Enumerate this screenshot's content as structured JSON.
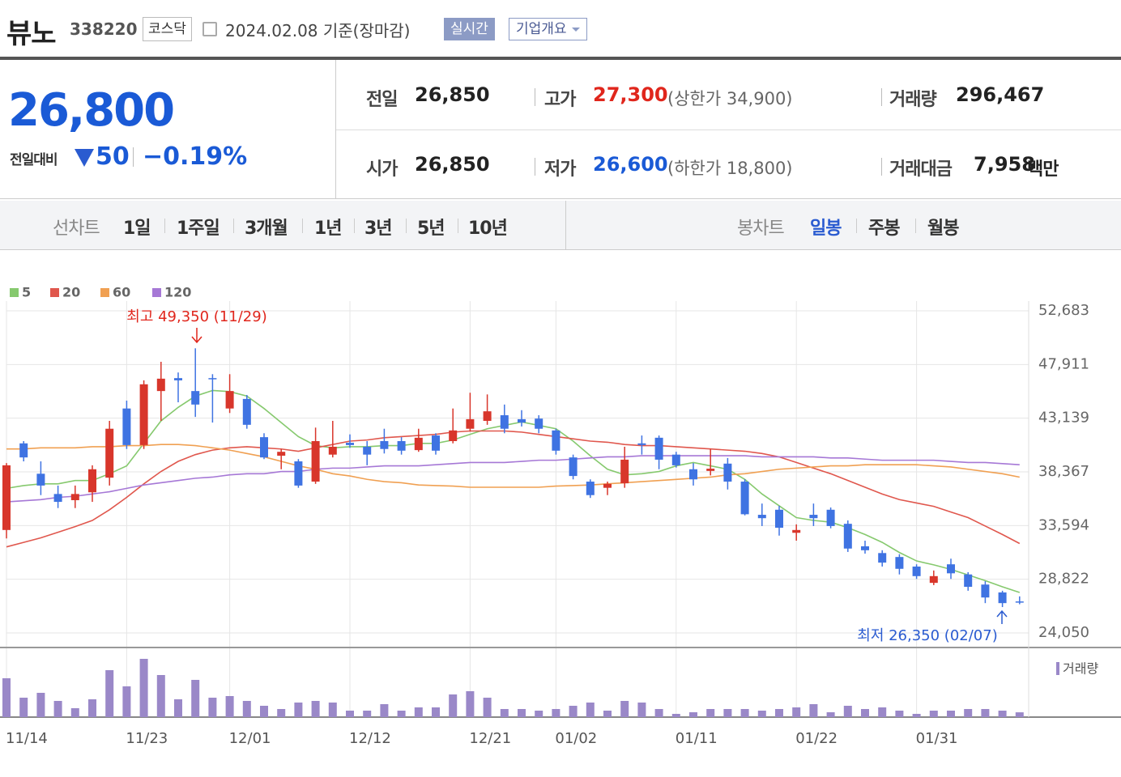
{
  "header": {
    "name": "뷰노",
    "code": "338220",
    "market": "코스닥",
    "date": "2024.02.08 기준(장마감)",
    "realtime": "실시간",
    "company_info": "기업개요"
  },
  "quote": {
    "price": "26,800",
    "change_label": "전일대비",
    "change": "50",
    "change_rate": "−0.19%"
  },
  "stats": [
    {
      "label": "전일",
      "value": "26,850"
    },
    {
      "label": "고가",
      "value": "27,300",
      "note": "(상한가 34,900)"
    },
    {
      "label": "거래량",
      "value": "296,467"
    },
    {
      "label": "시가",
      "value": "26,850"
    },
    {
      "label": "저가",
      "value": "26,600",
      "note": "(하한가 18,800)"
    },
    {
      "label": "거래대금",
      "value": "7,958",
      "unit": "백만"
    }
  ],
  "tabs": {
    "line_chart": {
      "label": "선차트",
      "periods": [
        "1일",
        "1주일",
        "3개월",
        "1년",
        "3년",
        "5년",
        "10년"
      ]
    },
    "candle_chart": {
      "label": "봉차트",
      "periods": [
        "일봉",
        "주봉",
        "월봉"
      ]
    }
  },
  "chart_data": {
    "type": "candlestick",
    "categories": [
      "11/14",
      null,
      null,
      null,
      null,
      null,
      null,
      "11/23",
      null,
      null,
      null,
      null,
      null,
      "12/01",
      null,
      null,
      null,
      null,
      null,
      null,
      "12/12",
      null,
      null,
      null,
      null,
      null,
      null,
      "12/21",
      null,
      null,
      null,
      null,
      "01/02",
      null,
      null,
      null,
      null,
      null,
      null,
      "01/11",
      null,
      null,
      null,
      null,
      null,
      null,
      "01/22",
      null,
      null,
      null,
      null,
      null,
      null,
      "01/31",
      null,
      null,
      null,
      null,
      null,
      null
    ],
    "open": [
      33200,
      40900,
      38200,
      36400,
      35850,
      36550,
      37850,
      44000,
      40750,
      45550,
      46700,
      45550,
      46700,
      44000,
      44850,
      41450,
      39800,
      39300,
      37500,
      39900,
      40950,
      40600,
      41100,
      41100,
      40300,
      41600,
      41100,
      42200,
      42900,
      43400,
      43050,
      43100,
      42050,
      39650,
      37500,
      36950,
      37350,
      40900,
      41400,
      39900,
      38600,
      38450,
      39100,
      37500,
      34550,
      35000,
      32950,
      34550,
      35000,
      33750,
      31750,
      31150,
      30800,
      29950,
      28500,
      30150,
      29250,
      28350,
      27650,
      26850
    ],
    "high": [
      39150,
      41100,
      39300,
      37150,
      37150,
      38950,
      42900,
      44700,
      46500,
      48150,
      47200,
      49350,
      47050,
      47050,
      45200,
      41800,
      40400,
      39500,
      42300,
      42900,
      41700,
      41100,
      42200,
      41450,
      42200,
      41800,
      44000,
      45400,
      45250,
      44350,
      43850,
      43400,
      42200,
      39900,
      37700,
      37500,
      40600,
      41600,
      41600,
      40150,
      39150,
      40400,
      39600,
      37700,
      35550,
      35350,
      33700,
      35550,
      35200,
      34050,
      32250,
      31400,
      31050,
      30150,
      29600,
      30650,
      29450,
      28650,
      27800,
      27300
    ],
    "low": [
      32450,
      39300,
      36300,
      35150,
      35150,
      35700,
      37150,
      40400,
      40400,
      42900,
      44550,
      43250,
      42750,
      43600,
      42200,
      39500,
      38600,
      36950,
      37300,
      39650,
      40500,
      38950,
      40000,
      39900,
      40150,
      39900,
      40900,
      41950,
      42550,
      41800,
      42400,
      41800,
      39900,
      37700,
      36050,
      36300,
      36950,
      39900,
      38600,
      38750,
      37150,
      38050,
      36800,
      34500,
      33550,
      32700,
      32250,
      33550,
      33350,
      31250,
      31100,
      29950,
      29250,
      28850,
      28300,
      28850,
      27800,
      26700,
      26350,
      26600
    ],
    "close": [
      38950,
      39650,
      37150,
      35700,
      36400,
      38600,
      42200,
      40750,
      46150,
      46650,
      46500,
      44350,
      46650,
      45550,
      42550,
      39650,
      40150,
      37150,
      41100,
      40600,
      40750,
      39900,
      40400,
      40250,
      41400,
      40250,
      42050,
      43050,
      43750,
      42200,
      42750,
      42200,
      40250,
      38000,
      36300,
      37300,
      39450,
      40750,
      39450,
      38950,
      37700,
      38650,
      37500,
      34600,
      34250,
      33400,
      33200,
      34250,
      33550,
      31550,
      31400,
      30300,
      29750,
      29100,
      29100,
      29350,
      28150,
      27200,
      26700,
      26800
    ],
    "up_color": "#d8362b",
    "down_color": "#3f73e2",
    "moving_averages": [
      {
        "name": "5",
        "color": "#86c96e",
        "values": [
          36900,
          37150,
          37300,
          37300,
          37600,
          37600,
          38200,
          38900,
          40900,
          42900,
          44100,
          45100,
          45600,
          45500,
          45100,
          44000,
          42750,
          41500,
          40700,
          40500,
          40600,
          40600,
          40700,
          40700,
          40900,
          40900,
          41200,
          41700,
          42200,
          42500,
          42800,
          42500,
          42200,
          41100,
          39800,
          38600,
          38100,
          38200,
          38400,
          38900,
          39200,
          38900,
          38600,
          37700,
          36400,
          35350,
          34300,
          34050,
          33900,
          33400,
          32800,
          32100,
          31200,
          30450,
          30100,
          29700,
          29200,
          28700,
          28150,
          27650
        ]
      },
      {
        "name": "20",
        "color": "#e0574d",
        "values": [
          31700,
          32100,
          32500,
          33000,
          33500,
          34050,
          35000,
          36100,
          37300,
          38400,
          39300,
          39900,
          40300,
          40500,
          40600,
          40500,
          40400,
          40200,
          40500,
          40800,
          41100,
          41200,
          41400,
          41500,
          41600,
          41700,
          41900,
          42000,
          42000,
          42000,
          41900,
          41700,
          41500,
          41300,
          41100,
          41000,
          40800,
          40700,
          40700,
          40600,
          40500,
          40400,
          40300,
          40200,
          40000,
          39700,
          39200,
          38700,
          38200,
          37600,
          37000,
          36400,
          35900,
          35600,
          35300,
          34800,
          34300,
          33550,
          32800,
          32000
        ]
      },
      {
        "name": "60",
        "color": "#f0a052",
        "values": [
          40400,
          40400,
          40500,
          40500,
          40500,
          40600,
          40600,
          40700,
          40700,
          40800,
          40800,
          40700,
          40500,
          40300,
          40000,
          39700,
          39300,
          38900,
          38600,
          38200,
          38000,
          37700,
          37500,
          37400,
          37200,
          37150,
          37100,
          37000,
          37000,
          37000,
          37000,
          37000,
          37100,
          37150,
          37200,
          37300,
          37400,
          37500,
          37600,
          37700,
          37800,
          37900,
          38100,
          38200,
          38400,
          38600,
          38700,
          38800,
          38900,
          38900,
          39000,
          39000,
          39000,
          39000,
          38900,
          38800,
          38600,
          38400,
          38200,
          37900
        ]
      },
      {
        "name": "120",
        "color": "#a678d6",
        "values": [
          35700,
          35800,
          35900,
          36100,
          36200,
          36400,
          36600,
          36900,
          37200,
          37400,
          37600,
          37800,
          37900,
          38100,
          38200,
          38200,
          38400,
          38400,
          38600,
          38700,
          38700,
          38800,
          38900,
          38900,
          38900,
          39000,
          39100,
          39200,
          39200,
          39200,
          39300,
          39400,
          39400,
          39500,
          39600,
          39700,
          39700,
          39800,
          39800,
          39800,
          39800,
          39800,
          39800,
          39800,
          39700,
          39700,
          39700,
          39700,
          39600,
          39600,
          39500,
          39400,
          39400,
          39400,
          39400,
          39300,
          39200,
          39200,
          39100,
          39000
        ]
      }
    ],
    "ylim": [
      24050,
      52683
    ],
    "yticks": [
      {
        "value": 52683,
        "label": "52,683"
      },
      {
        "value": 47911,
        "label": "47,911"
      },
      {
        "value": 43139,
        "label": "43,139"
      },
      {
        "value": 38367,
        "label": "38,367"
      },
      {
        "value": 33594,
        "label": "33,594"
      },
      {
        "value": 28822,
        "label": "28,822"
      },
      {
        "value": 24050,
        "label": "24,050"
      }
    ],
    "grid": true,
    "annotations": [
      "최고 49,350 (11/29)",
      "최저 26,350 (02/07)"
    ],
    "volume_label": "거래량",
    "volume_color": "#9a88c8",
    "volume": [
      2400000,
      1200000,
      1500000,
      1000000,
      550000,
      1100000,
      2900000,
      1900000,
      3600000,
      2600000,
      1100000,
      2300000,
      1200000,
      1300000,
      1000000,
      700000,
      500000,
      900000,
      1000000,
      900000,
      400000,
      400000,
      800000,
      400000,
      600000,
      600000,
      1400000,
      1600000,
      1200000,
      500000,
      500000,
      400000,
      500000,
      700000,
      900000,
      400000,
      1000000,
      900000,
      500000,
      200000,
      300000,
      500000,
      500000,
      500000,
      400000,
      500000,
      600000,
      800000,
      300000,
      700000,
      500000,
      600000,
      400000,
      200000,
      400000,
      400000,
      500000,
      500000,
      400000,
      296467
    ],
    "volume_ylim": [
      0,
      4000000
    ]
  }
}
